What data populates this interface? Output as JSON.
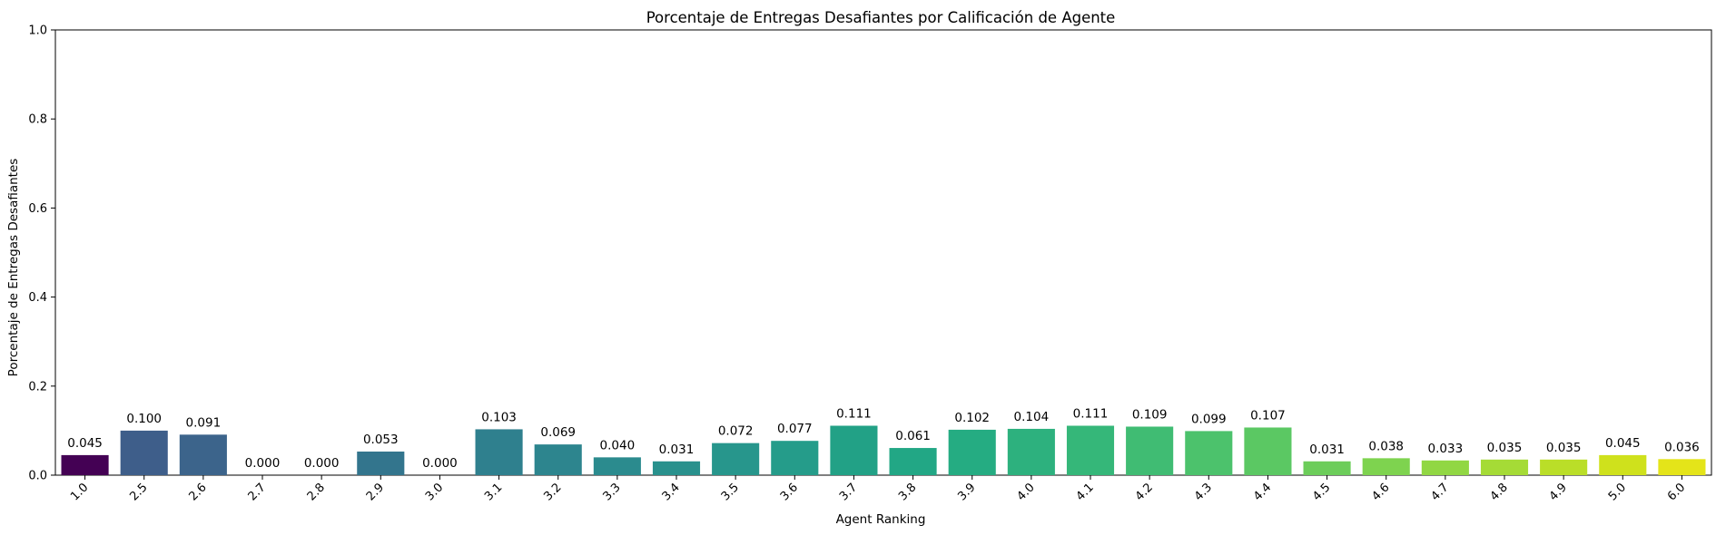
{
  "chart_data": {
    "type": "bar",
    "title": "Porcentaje de Entregas Desafiantes por Calificación de Agente",
    "xlabel": "Agent Ranking",
    "ylabel": "Porcentaje de Entregas Desafiantes",
    "ylim": [
      0,
      1.0
    ],
    "yticks": [
      "0.0",
      "0.2",
      "0.4",
      "0.6",
      "0.8",
      "1.0"
    ],
    "categories": [
      "1.0",
      "2.5",
      "2.6",
      "2.7",
      "2.8",
      "2.9",
      "3.0",
      "3.1",
      "3.2",
      "3.3",
      "3.4",
      "3.5",
      "3.6",
      "3.7",
      "3.8",
      "3.9",
      "4.0",
      "4.1",
      "4.2",
      "4.3",
      "4.4",
      "4.5",
      "4.6",
      "4.7",
      "4.8",
      "4.9",
      "5.0",
      "6.0"
    ],
    "values": [
      0.045,
      0.1,
      0.091,
      0.0,
      0.0,
      0.053,
      0.0,
      0.103,
      0.069,
      0.04,
      0.031,
      0.072,
      0.077,
      0.111,
      0.061,
      0.102,
      0.104,
      0.111,
      0.109,
      0.099,
      0.107,
      0.031,
      0.038,
      0.033,
      0.035,
      0.035,
      0.045,
      0.036
    ],
    "value_labels": [
      "0.045",
      "0.100",
      "0.091",
      "0.000",
      "0.000",
      "0.053",
      "0.000",
      "0.103",
      "0.069",
      "0.040",
      "0.031",
      "0.072",
      "0.077",
      "0.111",
      "0.061",
      "0.102",
      "0.104",
      "0.111",
      "0.109",
      "0.099",
      "0.107",
      "0.031",
      "0.038",
      "0.033",
      "0.035",
      "0.035",
      "0.045",
      "0.036"
    ],
    "colors": [
      "#440154",
      "#3e5e8a",
      "#3c648b",
      "#38698c",
      "#366f8d",
      "#33758d",
      "#317a8d",
      "#2f808e",
      "#2d858e",
      "#2b8b8e",
      "#29918d",
      "#27968c",
      "#259c8a",
      "#22a186",
      "#22a785",
      "#25ac82",
      "#2db17e",
      "#35b779",
      "#40bc73",
      "#4cc26c",
      "#5bc863",
      "#6ccd5a",
      "#7ed34f",
      "#91d743",
      "#a5db36",
      "#bade28",
      "#cfe11c",
      "#e4e419"
    ],
    "grid": false,
    "legend": "none"
  }
}
